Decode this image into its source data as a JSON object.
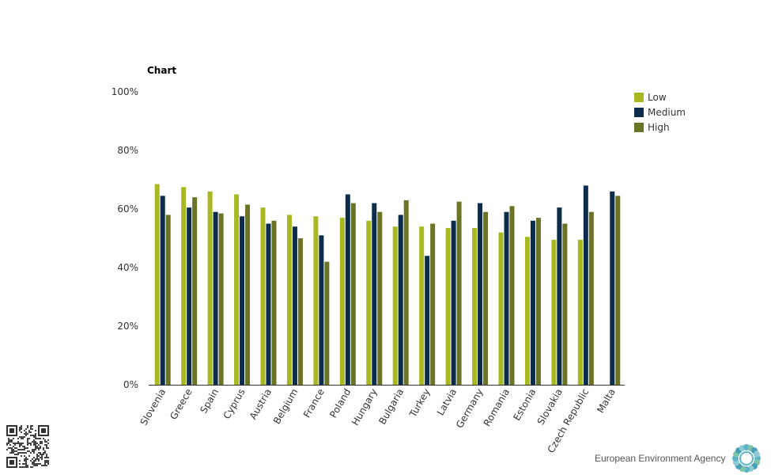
{
  "chart_data": {
    "type": "bar",
    "title": "Chart",
    "categories": [
      "Slovenia",
      "Greece",
      "Spain",
      "Cyprus",
      "Austria",
      "Belgium",
      "France",
      "Poland",
      "Hungary",
      "Bulgaria",
      "Turkey",
      "Latvia",
      "Germany",
      "Romania",
      "Estonia",
      "Slovakia",
      "Czech Republic",
      "Malta"
    ],
    "series": [
      {
        "name": "Low",
        "color": "#a8b820",
        "values": [
          68.5,
          67.5,
          66,
          65,
          60.5,
          58,
          57.5,
          57,
          56,
          54,
          54,
          53.5,
          53.5,
          52,
          50.5,
          49.5,
          49.5,
          null
        ]
      },
      {
        "name": "Medium",
        "color": "#0b2c4a",
        "values": [
          64.5,
          60.5,
          59,
          57.5,
          55,
          54,
          51,
          65,
          62,
          58,
          44,
          56,
          62,
          59,
          56,
          60.5,
          68,
          66
        ]
      },
      {
        "name": "High",
        "color": "#6b7426",
        "values": [
          58,
          64,
          58.5,
          61.5,
          56,
          50,
          42,
          62,
          59,
          63,
          55,
          62.5,
          59,
          61,
          57,
          55,
          59,
          64.5
        ]
      }
    ],
    "yticks": [
      "0%",
      "20%",
      "40%",
      "60%",
      "80%",
      "100%"
    ],
    "ylim": [
      0,
      100
    ],
    "legend_position": "top-right",
    "grid": false
  },
  "footer": {
    "brand": "European Environment Agency",
    "qr_icon": "qr-code-icon",
    "logo_icon": "eea-logo-icon"
  }
}
